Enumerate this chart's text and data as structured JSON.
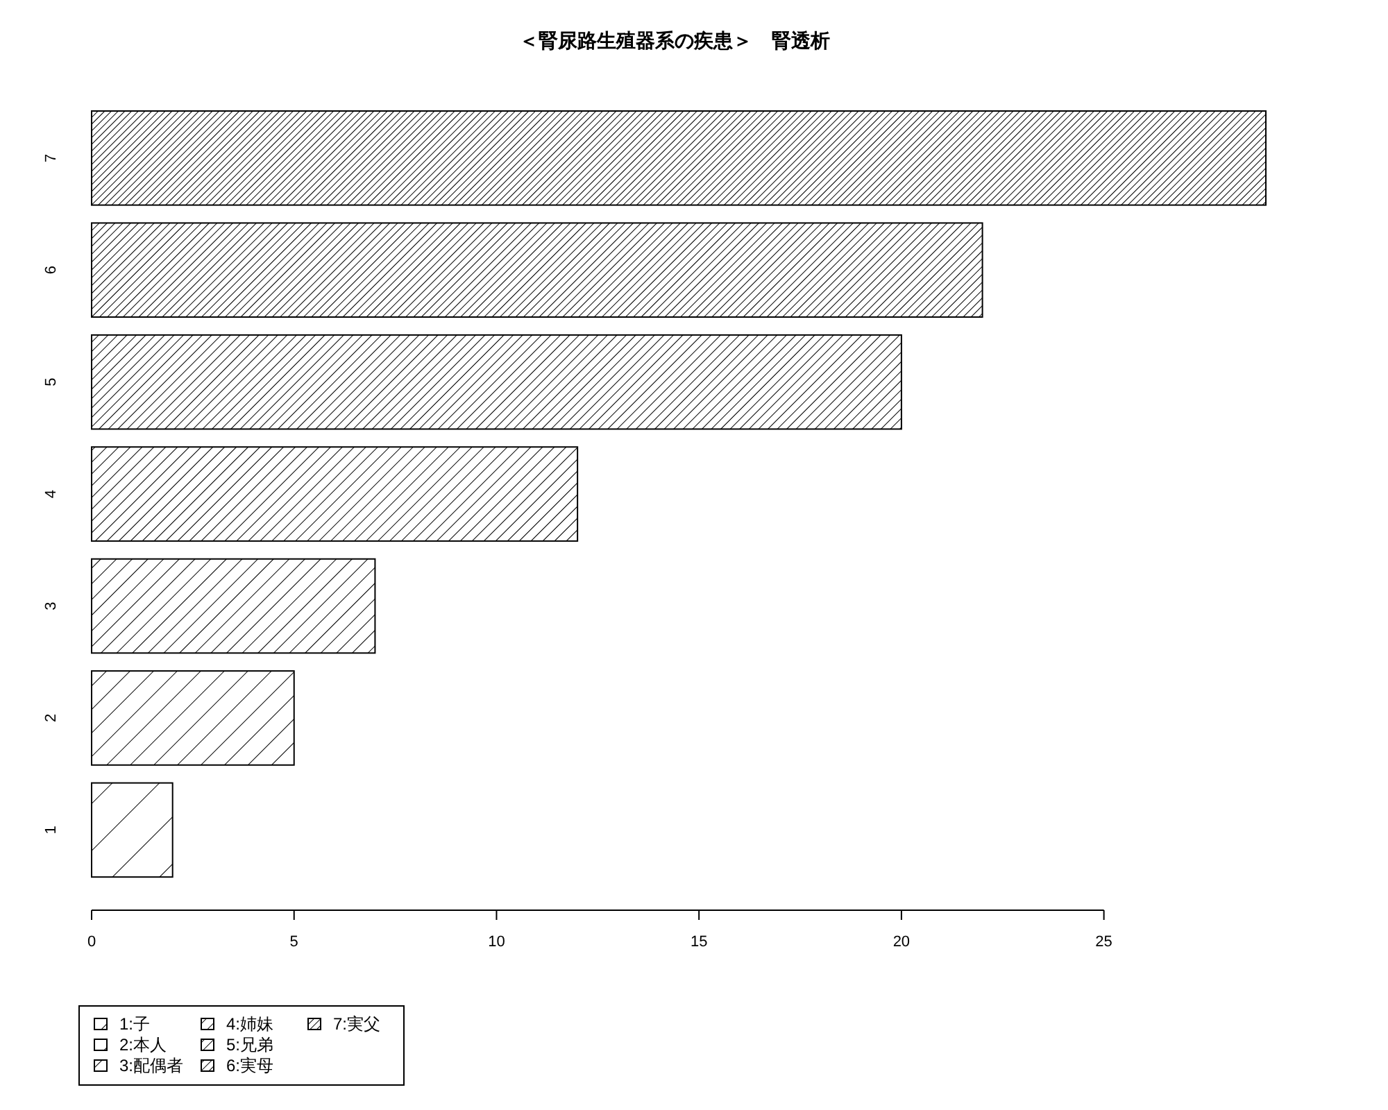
{
  "chart_data": {
    "type": "bar",
    "orientation": "horizontal",
    "title": "＜腎尿路生殖器系の疾患＞　腎透析",
    "categories": [
      "7",
      "6",
      "5",
      "4",
      "3",
      "2",
      "1"
    ],
    "series": [
      {
        "name": "1:子",
        "color": "#000000",
        "values": [
          null,
          null,
          null,
          null,
          null,
          null,
          2
        ]
      },
      {
        "name": "2:本人",
        "color": "#000000",
        "values": [
          null,
          null,
          null,
          null,
          null,
          5,
          null
        ]
      },
      {
        "name": "3:配偶者",
        "color": "#000000",
        "values": [
          null,
          null,
          null,
          null,
          7,
          null,
          null
        ]
      },
      {
        "name": "4:姉妹",
        "color": "#000000",
        "values": [
          null,
          null,
          null,
          12,
          null,
          null,
          null
        ]
      },
      {
        "name": "5:兄弟",
        "color": "#000000",
        "values": [
          null,
          null,
          20,
          null,
          null,
          null,
          null
        ]
      },
      {
        "name": "6:実母",
        "color": "#000000",
        "values": [
          null,
          22,
          null,
          null,
          null,
          null,
          null
        ]
      },
      {
        "name": "7:実父",
        "color": "#000000",
        "values": [
          29,
          null,
          null,
          null,
          null,
          null,
          null
        ]
      }
    ],
    "xlim": [
      0,
      29
    ],
    "xticks": [
      0,
      5,
      10,
      15,
      20,
      25
    ],
    "legend": "bottom left",
    "grid": false
  }
}
